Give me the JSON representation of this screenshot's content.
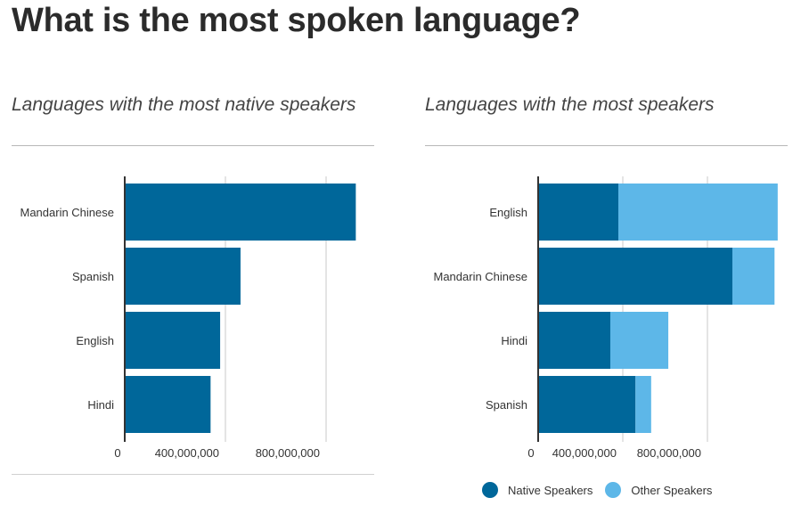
{
  "page": {
    "title": "What is the most spoken language?"
  },
  "colors": {
    "native": "#00679a",
    "other": "#5db7e8",
    "grid": "#c8c8c8",
    "axis": "#333333"
  },
  "legend": {
    "native_label": "Native Speakers",
    "other_label": "Other Speakers"
  },
  "chart_data": [
    {
      "type": "bar",
      "orientation": "horizontal",
      "title": "Languages with the most native speakers",
      "categories": [
        "Mandarin Chinese",
        "Spanish",
        "English",
        "Hindi"
      ],
      "series": [
        {
          "values": [
            918000000,
            460000000,
            379000000,
            341000000
          ]
        }
      ],
      "xlim": [
        0,
        1000000000
      ],
      "xticks": [
        "0",
        "400,000,000",
        "800,000,000"
      ],
      "xtick_values": [
        0,
        400000000,
        800000000
      ],
      "grid": true
    },
    {
      "type": "bar",
      "orientation": "horizontal",
      "stacked": true,
      "title": "Languages with the most speakers",
      "categories": [
        "English",
        "Mandarin Chinese",
        "Hindi",
        "Spanish"
      ],
      "series": [
        {
          "name": "Native Speakers",
          "values": [
            379000000,
            918000000,
            341000000,
            460000000
          ]
        },
        {
          "name": "Other Speakers",
          "values": [
            753000000,
            199000000,
            274000000,
            74000000
          ]
        }
      ],
      "xlim": [
        0,
        1200000000
      ],
      "xticks": [
        "0",
        "400,000,000",
        "800,000,000"
      ],
      "xtick_values": [
        0,
        400000000,
        800000000
      ],
      "grid": true,
      "legend_position": "bottom"
    }
  ]
}
